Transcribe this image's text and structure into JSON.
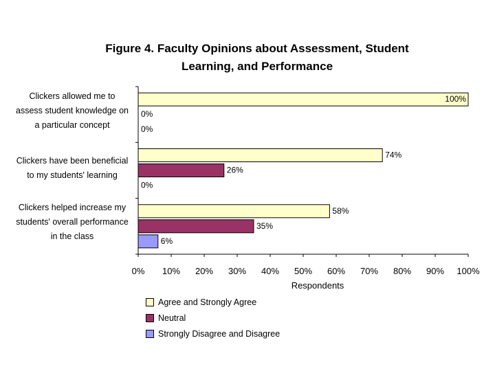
{
  "chart_data": {
    "type": "bar",
    "orientation": "horizontal",
    "title": [
      "Figure 4. Faculty Opinions about Assessment, Student",
      "Learning, and Performance"
    ],
    "xlabel": "Respondents",
    "ylabel": "",
    "xlim": [
      0,
      100
    ],
    "x_ticks": [
      "0%",
      "10%",
      "20%",
      "30%",
      "40%",
      "50%",
      "60%",
      "70%",
      "80%",
      "90%",
      "100%"
    ],
    "categories": [
      [
        "Clickers allowed me to",
        "assess student knowledge on",
        "a particular concept"
      ],
      [
        "Clickers have been beneficial",
        "to my students' learning"
      ],
      [
        "Clickers helped increase my",
        "students' overall performance",
        "in the class"
      ]
    ],
    "series": [
      {
        "name": "Agree and Strongly Agree",
        "color": "#ffffcc",
        "values": [
          100,
          74,
          58
        ],
        "labels": [
          "100%",
          "74%",
          "58%"
        ]
      },
      {
        "name": "Neutral",
        "color": "#993366",
        "values": [
          0,
          26,
          35
        ],
        "labels": [
          "0%",
          "26%",
          "35%"
        ]
      },
      {
        "name": "Strongly Disagree and Disagree",
        "color": "#9999ff",
        "values": [
          0,
          0,
          6
        ],
        "labels": [
          "0%",
          "0%",
          "6%"
        ]
      }
    ],
    "legend_position": "bottom-left",
    "grid": false
  }
}
